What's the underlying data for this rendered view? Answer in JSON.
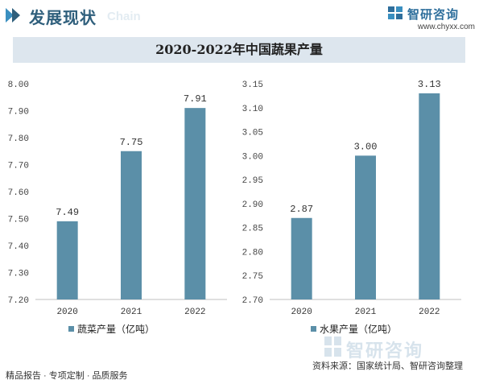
{
  "header": {
    "title": "发展现状",
    "watermark": "Chain"
  },
  "brand": {
    "name": "智研咨询",
    "url": "www.chyxx.com"
  },
  "title_bar": {
    "title": "2020-2022年中国蔬果产量"
  },
  "chart_data": [
    {
      "type": "bar",
      "categories": [
        "2020",
        "2021",
        "2022"
      ],
      "series": [
        {
          "name": "蔬菜产量（亿吨）",
          "values": [
            7.49,
            7.75,
            7.91
          ]
        }
      ],
      "value_labels": [
        "7.49",
        "7.75",
        "7.91"
      ],
      "ylim": [
        7.2,
        8.0
      ],
      "yticks": [
        "7.20",
        "7.30",
        "7.40",
        "7.50",
        "7.60",
        "7.70",
        "7.80",
        "7.90",
        "8.00"
      ],
      "legend_position": "bottom-left",
      "grid": false,
      "bar_color": "#5b8fa8"
    },
    {
      "type": "bar",
      "categories": [
        "2020",
        "2021",
        "2022"
      ],
      "series": [
        {
          "name": "水果产量（亿吨）",
          "values": [
            2.87,
            3.0,
            3.13
          ]
        }
      ],
      "value_labels": [
        "2.87",
        "3.00",
        "3.13"
      ],
      "ylim": [
        2.7,
        3.15
      ],
      "yticks": [
        "2.70",
        "2.75",
        "2.80",
        "2.85",
        "2.90",
        "2.95",
        "3.00",
        "3.05",
        "3.10",
        "3.15"
      ],
      "legend_position": "bottom-left",
      "grid": false,
      "bar_color": "#5b8fa8"
    }
  ],
  "footer": {
    "left": "精品报告 · 专项定制 · 品质服务",
    "right": "资料来源：国家统计局、智研咨询整理",
    "watermark": "智研咨询"
  }
}
